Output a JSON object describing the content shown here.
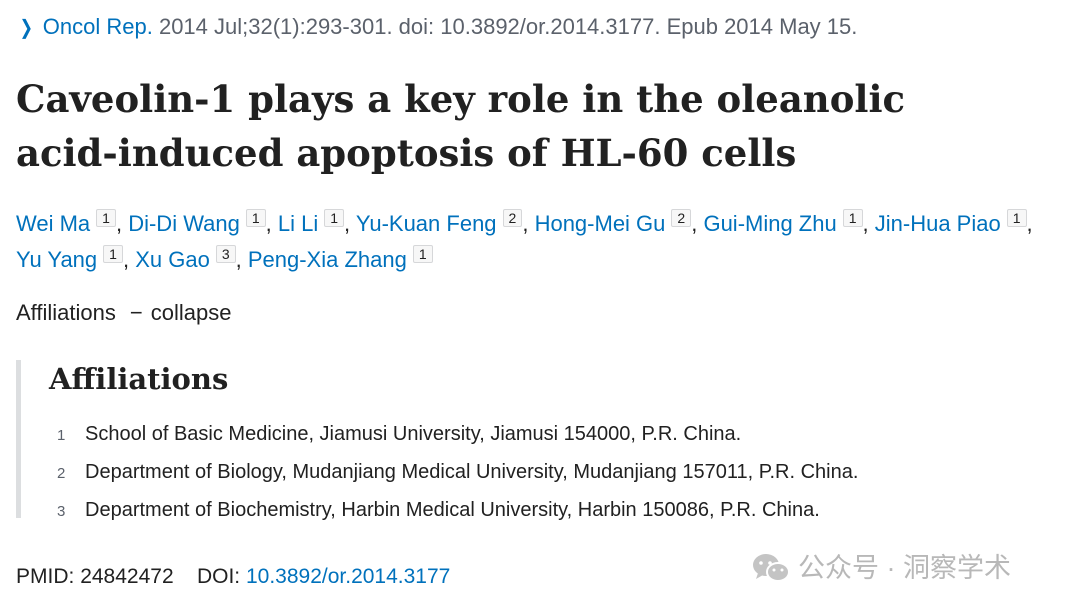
{
  "citation": {
    "journal": "Oncol Rep.",
    "details": "2014 Jul;32(1):293-301. doi: 10.3892/or.2014.3177. Epub 2014 May 15."
  },
  "title": "Caveolin-1 plays a key role in the oleanolic acid-induced apoptosis of HL-60 cells",
  "authors": [
    {
      "name": "Wei Ma",
      "aff": "1"
    },
    {
      "name": "Di-Di Wang",
      "aff": "1"
    },
    {
      "name": "Li Li",
      "aff": "1"
    },
    {
      "name": "Yu-Kuan Feng",
      "aff": "2"
    },
    {
      "name": "Hong-Mei Gu",
      "aff": "2"
    },
    {
      "name": "Gui-Ming Zhu",
      "aff": "1"
    },
    {
      "name": "Jin-Hua Piao",
      "aff": "1"
    },
    {
      "name": "Yu Yang",
      "aff": "1"
    },
    {
      "name": "Xu Gao",
      "aff": "3"
    },
    {
      "name": "Peng-Xia Zhang",
      "aff": "1"
    }
  ],
  "affiliations_toggle": {
    "label": "Affiliations",
    "action": "collapse"
  },
  "affiliations": {
    "heading": "Affiliations",
    "items": [
      {
        "num": "1",
        "text": "School of Basic Medicine, Jiamusi University, Jiamusi 154000, P.R. China."
      },
      {
        "num": "2",
        "text": "Department of Biology, Mudanjiang Medical University, Mudanjiang 157011, P.R. China."
      },
      {
        "num": "3",
        "text": "Department of Biochemistry, Harbin Medical University, Harbin 150086, P.R. China."
      }
    ]
  },
  "identifiers": {
    "pmid_label": "PMID:",
    "pmid": "24842472",
    "doi_label": "DOI:",
    "doi": "10.3892/or.2014.3177"
  },
  "watermark": {
    "text": "公众号 · 洞察学术",
    "icon": "wechat-icon"
  },
  "colors": {
    "link": "#0071bc",
    "text": "#212121",
    "muted": "#5b616b",
    "watermark": "#b8b8b8"
  }
}
